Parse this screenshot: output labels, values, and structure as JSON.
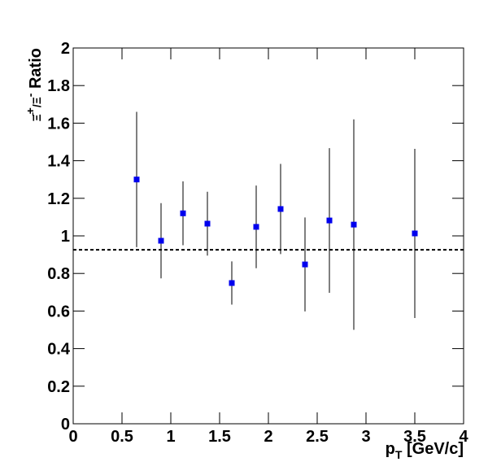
{
  "chart_data": {
    "type": "scatter",
    "x_label": {
      "main": "p",
      "sub": "T",
      "rest": " [GeV/c]"
    },
    "y_label": {
      "main": "Ξ̄",
      "sup": "+",
      "mid": "/Ξ",
      "sup2": "-",
      "rest": " Ratio"
    },
    "series": [
      {
        "color": "#0000ee",
        "x": [
          0.65,
          0.9,
          1.125,
          1.375,
          1.625,
          1.875,
          2.125,
          2.375,
          2.625,
          2.875,
          3.5
        ],
        "values": [
          1.3,
          0.974,
          1.12,
          1.065,
          0.749,
          1.048,
          1.143,
          0.848,
          1.082,
          1.06,
          1.013
        ],
        "errors": [
          0.36,
          0.2,
          0.17,
          0.17,
          0.115,
          0.22,
          0.24,
          0.25,
          0.385,
          0.56,
          0.45
        ]
      }
    ],
    "reference_line": 0.926,
    "xlim": [
      0,
      4
    ],
    "ylim": [
      0,
      2
    ],
    "xticks": [
      0,
      0.5,
      1,
      1.5,
      2,
      2.5,
      3,
      3.5,
      4
    ],
    "yticks": [
      0,
      0.2,
      0.4,
      0.6,
      0.8,
      1,
      1.2,
      1.4,
      1.6,
      1.8,
      2
    ]
  }
}
